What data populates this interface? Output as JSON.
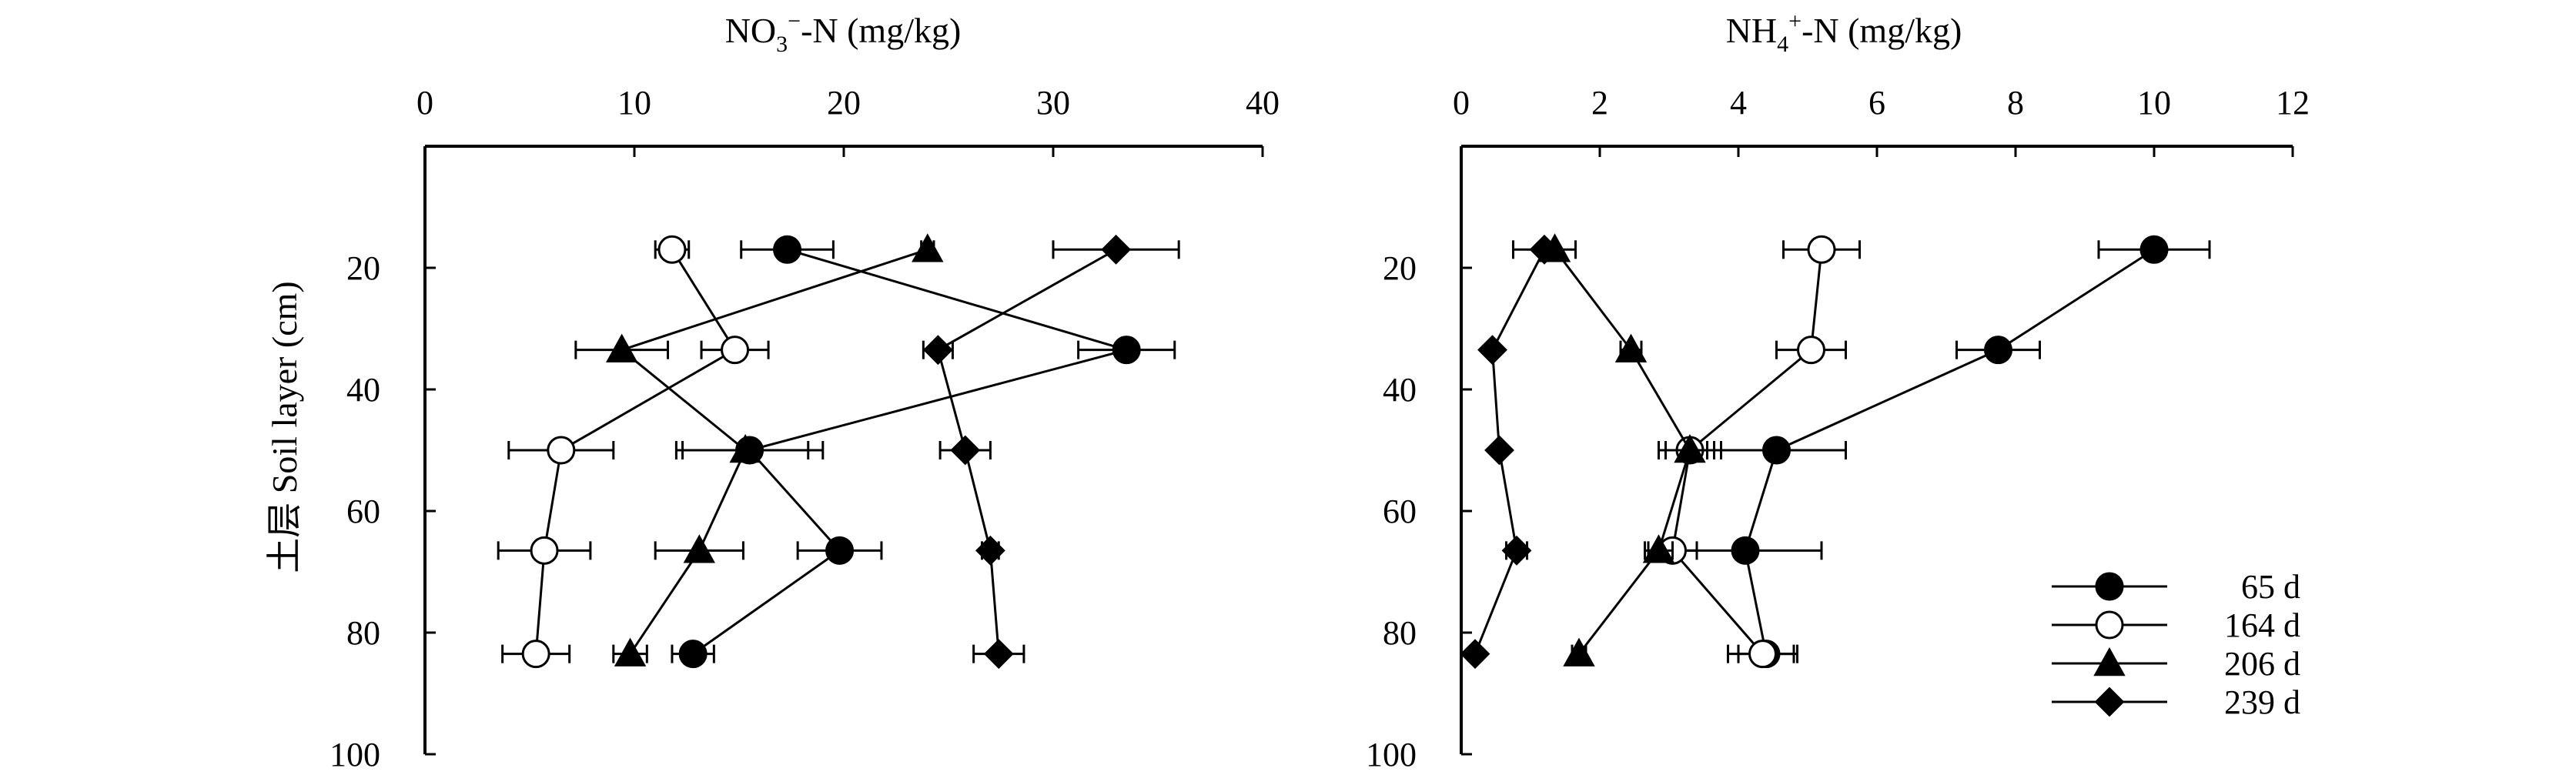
{
  "chart_data": [
    {
      "type": "line",
      "orientation": "vertical-profile",
      "title": "",
      "xlabel": {
        "main": "NO",
        "sub": "3",
        "sup": "−",
        "rest": "-N (mg/kg)"
      },
      "ylabel": "土层 Soil layer (cm)",
      "xlim": [
        0,
        40
      ],
      "ylim": [
        100,
        0
      ],
      "x_ticks": [
        "0",
        "10",
        "20",
        "30",
        "40"
      ],
      "y_ticks": [
        "20",
        "40",
        "60",
        "80",
        "100"
      ],
      "depths": [
        17,
        33.5,
        50,
        66.5,
        83.5
      ],
      "series": [
        {
          "name": "65 d",
          "marker": "circle-filled",
          "x": [
            17.3,
            33.5,
            15.5,
            19.8,
            12.8
          ],
          "err": [
            2.2,
            2.3,
            3.5,
            2.0,
            1.0
          ]
        },
        {
          "name": "164 d",
          "marker": "circle-open",
          "x": [
            11.8,
            14.8,
            6.5,
            5.7,
            5.3
          ],
          "err": [
            0.8,
            1.6,
            2.5,
            2.2,
            1.6
          ]
        },
        {
          "name": "206 d",
          "marker": "triangle",
          "x": [
            24.0,
            9.4,
            15.3,
            13.1,
            9.8
          ],
          "err": [
            0.3,
            2.2,
            3.0,
            2.1,
            0.8
          ]
        },
        {
          "name": "239 d",
          "marker": "diamond",
          "x": [
            33.0,
            24.5,
            25.8,
            27.0,
            27.4
          ],
          "err": [
            3.0,
            0.7,
            1.2,
            0.4,
            1.2
          ]
        }
      ]
    },
    {
      "type": "line",
      "orientation": "vertical-profile",
      "title": "",
      "xlabel": {
        "main": "NH",
        "sub": "4",
        "sup": "+",
        "rest": "-N (mg/kg)"
      },
      "ylabel": "",
      "xlim": [
        0,
        12
      ],
      "ylim": [
        100,
        0
      ],
      "x_ticks": [
        "0",
        "2",
        "4",
        "6",
        "8",
        "10",
        "12"
      ],
      "y_ticks": [
        "20",
        "40",
        "60",
        "80",
        "100"
      ],
      "depths": [
        17,
        33.5,
        50,
        66.5,
        83.5
      ],
      "series": [
        {
          "name": "65 d",
          "marker": "circle-filled",
          "x": [
            10.0,
            7.75,
            4.55,
            4.1,
            4.4
          ],
          "err": [
            0.8,
            0.6,
            1.0,
            1.1,
            0.4
          ]
        },
        {
          "name": "164 d",
          "marker": "circle-open",
          "x": [
            5.2,
            5.05,
            3.3,
            3.05,
            4.35
          ],
          "err": [
            0.55,
            0.5,
            0.35,
            0.35,
            0.5
          ]
        },
        {
          "name": "206 d",
          "marker": "triangle",
          "x": [
            1.35,
            2.45,
            3.3,
            2.85,
            1.7
          ],
          "err": [
            0.0,
            0.15,
            0.45,
            0.2,
            0.1
          ]
        },
        {
          "name": "239 d",
          "marker": "diamond",
          "x": [
            1.2,
            0.45,
            0.55,
            0.8,
            0.2
          ],
          "err": [
            0.45,
            0.0,
            0.0,
            0.15,
            0.0
          ]
        }
      ]
    }
  ],
  "legend": {
    "entries": [
      {
        "label": "65 d",
        "marker": "circle-filled"
      },
      {
        "label": "164 d",
        "marker": "circle-open"
      },
      {
        "label": "206 d",
        "marker": "triangle"
      },
      {
        "label": "239 d",
        "marker": "diamond"
      }
    ],
    "placement": "bottom-right of right panel"
  }
}
